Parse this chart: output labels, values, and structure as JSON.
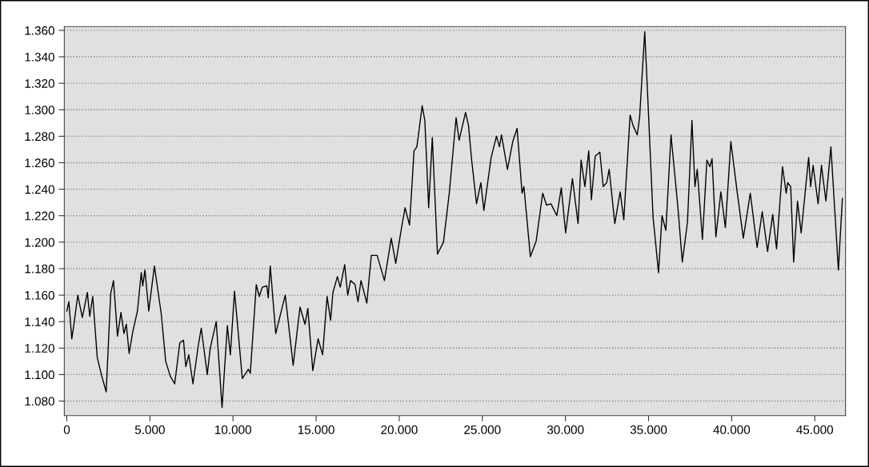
{
  "chart_data": {
    "type": "line",
    "x": [
      0,
      125,
      300,
      430,
      660,
      935,
      1235,
      1380,
      1560,
      1830,
      2100,
      2370,
      2640,
      2810,
      3050,
      3260,
      3440,
      3580,
      3750,
      3980,
      4250,
      4480,
      4570,
      4700,
      4930,
      5270,
      5680,
      5950,
      6220,
      6490,
      6800,
      7020,
      7160,
      7340,
      7590,
      7910,
      8090,
      8450,
      8630,
      8990,
      9340,
      9660,
      9840,
      10090,
      10560,
      10920,
      11040,
      11400,
      11580,
      11760,
      12030,
      12120,
      12240,
      12570,
      13140,
      13620,
      14030,
      14330,
      14500,
      14800,
      15120,
      15390,
      15660,
      15870,
      16010,
      16280,
      16450,
      16720,
      16900,
      17070,
      17340,
      17520,
      17700,
      18050,
      18320,
      18670,
      19110,
      19520,
      19790,
      20140,
      20350,
      20620,
      20890,
      21060,
      21380,
      21540,
      21770,
      21990,
      22300,
      22660,
      23010,
      23420,
      23600,
      23990,
      24170,
      24340,
      24650,
      24910,
      25090,
      25530,
      25850,
      26030,
      26150,
      26510,
      26830,
      27090,
      27390,
      27500,
      27890,
      28240,
      28630,
      28860,
      29130,
      29480,
      29750,
      30010,
      30420,
      30760,
      30940,
      31170,
      31400,
      31560,
      31790,
      32070,
      32270,
      32480,
      32630,
      32970,
      33290,
      33510,
      33890,
      34070,
      34320,
      34460,
      34770,
      35000,
      35270,
      35600,
      35810,
      36040,
      36350,
      36760,
      37030,
      37340,
      37610,
      37790,
      37930,
      38240,
      38510,
      38690,
      38820,
      39050,
      39350,
      39620,
      39950,
      40340,
      40700,
      41120,
      41530,
      41840,
      42160,
      42470,
      42700,
      43060,
      43280,
      43370,
      43550,
      43730,
      43960,
      44180,
      44630,
      44750,
      44900,
      45200,
      45400,
      45670,
      45970,
      46420,
      46660
    ],
    "series": [
      {
        "color": "#000000",
        "values": [
          1148,
          1155,
          1127,
          1138,
          1160,
          1143,
          1162,
          1144,
          1159,
          1113,
          1099,
          1087,
          1161,
          1171,
          1129,
          1147,
          1131,
          1138,
          1116,
          1133,
          1148,
          1177,
          1167,
          1179,
          1148,
          1182,
          1146,
          1110,
          1099,
          1093,
          1124,
          1126,
          1106,
          1115,
          1093,
          1122,
          1135,
          1100,
          1120,
          1140,
          1075,
          1137,
          1115,
          1163,
          1097,
          1104,
          1101,
          1168,
          1159,
          1166,
          1167,
          1158,
          1182,
          1131,
          1160,
          1107,
          1151,
          1138,
          1150,
          1103,
          1127,
          1115,
          1159,
          1141,
          1162,
          1174,
          1166,
          1183,
          1160,
          1171,
          1168,
          1155,
          1171,
          1154,
          1190,
          1190,
          1171,
          1203,
          1184,
          1211,
          1226,
          1213,
          1269,
          1272,
          1303,
          1292,
          1226,
          1279,
          1191,
          1200,
          1237,
          1294,
          1277,
          1298,
          1288,
          1264,
          1229,
          1245,
          1224,
          1264,
          1280,
          1272,
          1281,
          1255,
          1276,
          1286,
          1237,
          1242,
          1189,
          1201,
          1237,
          1228,
          1229,
          1220,
          1241,
          1207,
          1248,
          1214,
          1262,
          1242,
          1269,
          1232,
          1265,
          1268,
          1242,
          1245,
          1255,
          1214,
          1238,
          1217,
          1296,
          1288,
          1281,
          1294,
          1359,
          1296,
          1219,
          1177,
          1220,
          1209,
          1281,
          1227,
          1185,
          1215,
          1292,
          1242,
          1255,
          1202,
          1262,
          1257,
          1263,
          1204,
          1238,
          1211,
          1276,
          1237,
          1203,
          1237,
          1196,
          1223,
          1193,
          1221,
          1195,
          1257,
          1237,
          1245,
          1242,
          1185,
          1231,
          1207,
          1264,
          1242,
          1258,
          1229,
          1258,
          1231,
          1272,
          1179,
          1233
        ]
      }
    ],
    "xlim": [
      -150,
      46850
    ],
    "xticks": [
      0,
      {
        "value": 5000,
        "label": "5.000"
      },
      {
        "value": 10000,
        "label": "10.000"
      },
      {
        "value": 15000,
        "label": "15.000"
      },
      {
        "value": 20000,
        "label": "20.000"
      },
      {
        "value": 25000,
        "label": "25.000"
      },
      {
        "value": 30000,
        "label": "30.000"
      },
      {
        "value": 35000,
        "label": "35.000"
      },
      {
        "value": 40000,
        "label": "40.000"
      },
      {
        "value": 45000,
        "label": "45.000"
      }
    ],
    "ylim": [
      1069,
      1362.8
    ],
    "yticks": [
      {
        "value": 1080,
        "label": "1.080"
      },
      {
        "value": 1100,
        "label": "1.100"
      },
      {
        "value": 1120,
        "label": "1.120"
      },
      {
        "value": 1140,
        "label": "1.140"
      },
      {
        "value": 1160,
        "label": "1.160"
      },
      {
        "value": 1180,
        "label": "1.180"
      },
      {
        "value": 1200,
        "label": "1.200"
      },
      {
        "value": 1220,
        "label": "1.220"
      },
      {
        "value": 1240,
        "label": "1.240"
      },
      {
        "value": 1260,
        "label": "1.260"
      },
      {
        "value": 1280,
        "label": "1.280"
      },
      {
        "value": 1300,
        "label": "1.300"
      },
      {
        "value": 1320,
        "label": "1.320"
      },
      {
        "value": 1340,
        "label": "1.340"
      },
      {
        "value": 1360,
        "label": "1.360"
      }
    ],
    "grid": "y",
    "marker": "none",
    "line_style": "solid",
    "legend": false
  }
}
